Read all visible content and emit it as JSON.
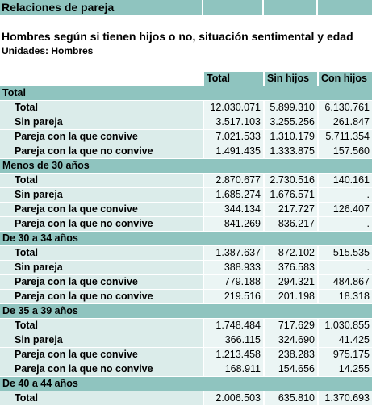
{
  "header": {
    "title": "Relaciones de pareja",
    "subtitle": "Hombres según si tienen hijos o no, situación sentimental y edad",
    "units": "Unidades: Hombres"
  },
  "table": {
    "columns": [
      "Total",
      "Sin hijos",
      "Con hijos"
    ],
    "sections": [
      {
        "label": "Total",
        "rows": [
          {
            "label": "Total",
            "values": [
              "12.030.071",
              "5.899.310",
              "6.130.761"
            ]
          },
          {
            "label": "Sin pareja",
            "values": [
              "3.517.103",
              "3.255.256",
              "261.847"
            ]
          },
          {
            "label": "Pareja con la que convive",
            "values": [
              "7.021.533",
              "1.310.179",
              "5.711.354"
            ]
          },
          {
            "label": "Pareja con la que no convive",
            "values": [
              "1.491.435",
              "1.333.875",
              "157.560"
            ]
          }
        ]
      },
      {
        "label": "Menos de 30 años",
        "rows": [
          {
            "label": "Total",
            "values": [
              "2.870.677",
              "2.730.516",
              "140.161"
            ]
          },
          {
            "label": "Sin pareja",
            "values": [
              "1.685.274",
              "1.676.571",
              "."
            ]
          },
          {
            "label": "Pareja con la que convive",
            "values": [
              "344.134",
              "217.727",
              "126.407"
            ]
          },
          {
            "label": "Pareja con la que no convive",
            "values": [
              "841.269",
              "836.217",
              "."
            ]
          }
        ]
      },
      {
        "label": "De 30 a 34 años",
        "rows": [
          {
            "label": "Total",
            "values": [
              "1.387.637",
              "872.102",
              "515.535"
            ]
          },
          {
            "label": "Sin pareja",
            "values": [
              "388.933",
              "376.583",
              "."
            ]
          },
          {
            "label": "Pareja con la que convive",
            "values": [
              "779.188",
              "294.321",
              "484.867"
            ]
          },
          {
            "label": "Pareja con la que no convive",
            "values": [
              "219.516",
              "201.198",
              "18.318"
            ]
          }
        ]
      },
      {
        "label": "De 35 a 39 años",
        "rows": [
          {
            "label": "Total",
            "values": [
              "1.748.484",
              "717.629",
              "1.030.855"
            ]
          },
          {
            "label": "Sin pareja",
            "values": [
              "366.115",
              "324.690",
              "41.425"
            ]
          },
          {
            "label": "Pareja con la que convive",
            "values": [
              "1.213.458",
              "238.283",
              "975.175"
            ]
          },
          {
            "label": "Pareja con la que no convive",
            "values": [
              "168.911",
              "154.656",
              "14.255"
            ]
          }
        ]
      },
      {
        "label": "De 40 a 44 años",
        "rows": [
          {
            "label": "Total",
            "values": [
              "2.006.503",
              "635.810",
              "1.370.693"
            ]
          }
        ]
      }
    ]
  },
  "colors": {
    "header_teal": "#8fc4bf",
    "label_cell": "#dbecea",
    "value_cell": "#ebf5f4"
  }
}
